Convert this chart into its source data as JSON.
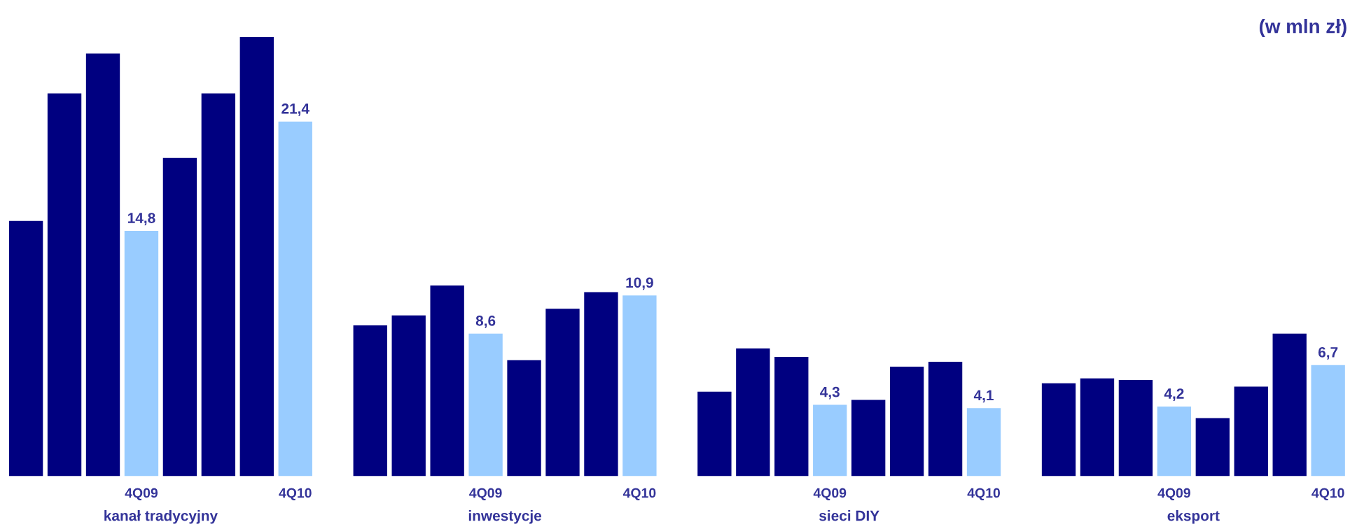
{
  "chart_data": [
    {
      "type": "bar",
      "xlabel": "kanał tradycyjny",
      "categories": [
        null,
        null,
        null,
        "4Q09",
        null,
        null,
        null,
        "4Q10"
      ],
      "values": [
        15.4,
        23.1,
        25.5,
        14.8,
        19.2,
        23.1,
        26.5,
        21.4
      ],
      "colors": [
        "#000080",
        "#000080",
        "#000080",
        "#99ccff",
        "#000080",
        "#000080",
        "#000080",
        "#99ccff"
      ],
      "value_labels": [
        null,
        null,
        null,
        "14,8",
        null,
        null,
        null,
        "21,4"
      ],
      "tick_labels": "x"
    },
    {
      "type": "bar",
      "xlabel": "inwestycje",
      "categories": [
        null,
        null,
        null,
        "4Q09",
        null,
        null,
        null,
        "4Q10"
      ],
      "values": [
        9.1,
        9.7,
        11.5,
        8.6,
        7.0,
        10.1,
        11.1,
        10.9
      ],
      "colors": [
        "#000080",
        "#000080",
        "#000080",
        "#99ccff",
        "#000080",
        "#000080",
        "#000080",
        "#99ccff"
      ],
      "value_labels": [
        null,
        null,
        null,
        "8,6",
        null,
        null,
        null,
        "10,9"
      ],
      "tick_labels": "x"
    },
    {
      "type": "bar",
      "xlabel": "sieci DIY",
      "categories": [
        null,
        null,
        null,
        "4Q09",
        null,
        null,
        null,
        "4Q10"
      ],
      "values": [
        5.1,
        7.7,
        7.2,
        4.3,
        4.6,
        6.6,
        6.9,
        4.1
      ],
      "colors": [
        "#000080",
        "#000080",
        "#000080",
        "#99ccff",
        "#000080",
        "#000080",
        "#000080",
        "#99ccff"
      ],
      "value_labels": [
        null,
        null,
        null,
        "4,3",
        null,
        null,
        null,
        "4,1"
      ],
      "tick_labels": "x"
    },
    {
      "type": "bar",
      "xlabel": "eksport",
      "categories": [
        null,
        null,
        null,
        "4Q09",
        null,
        null,
        null,
        "4Q10"
      ],
      "values": [
        5.6,
        5.9,
        5.8,
        4.2,
        3.5,
        5.4,
        8.6,
        6.7
      ],
      "colors": [
        "#000080",
        "#000080",
        "#000080",
        "#99ccff",
        "#000080",
        "#000080",
        "#000080",
        "#99ccff"
      ],
      "value_labels": [
        null,
        null,
        null,
        "4,2",
        null,
        null,
        null,
        "6,7"
      ],
      "tick_labels": "x",
      "annotations": [
        "(w mln zł)"
      ]
    }
  ]
}
